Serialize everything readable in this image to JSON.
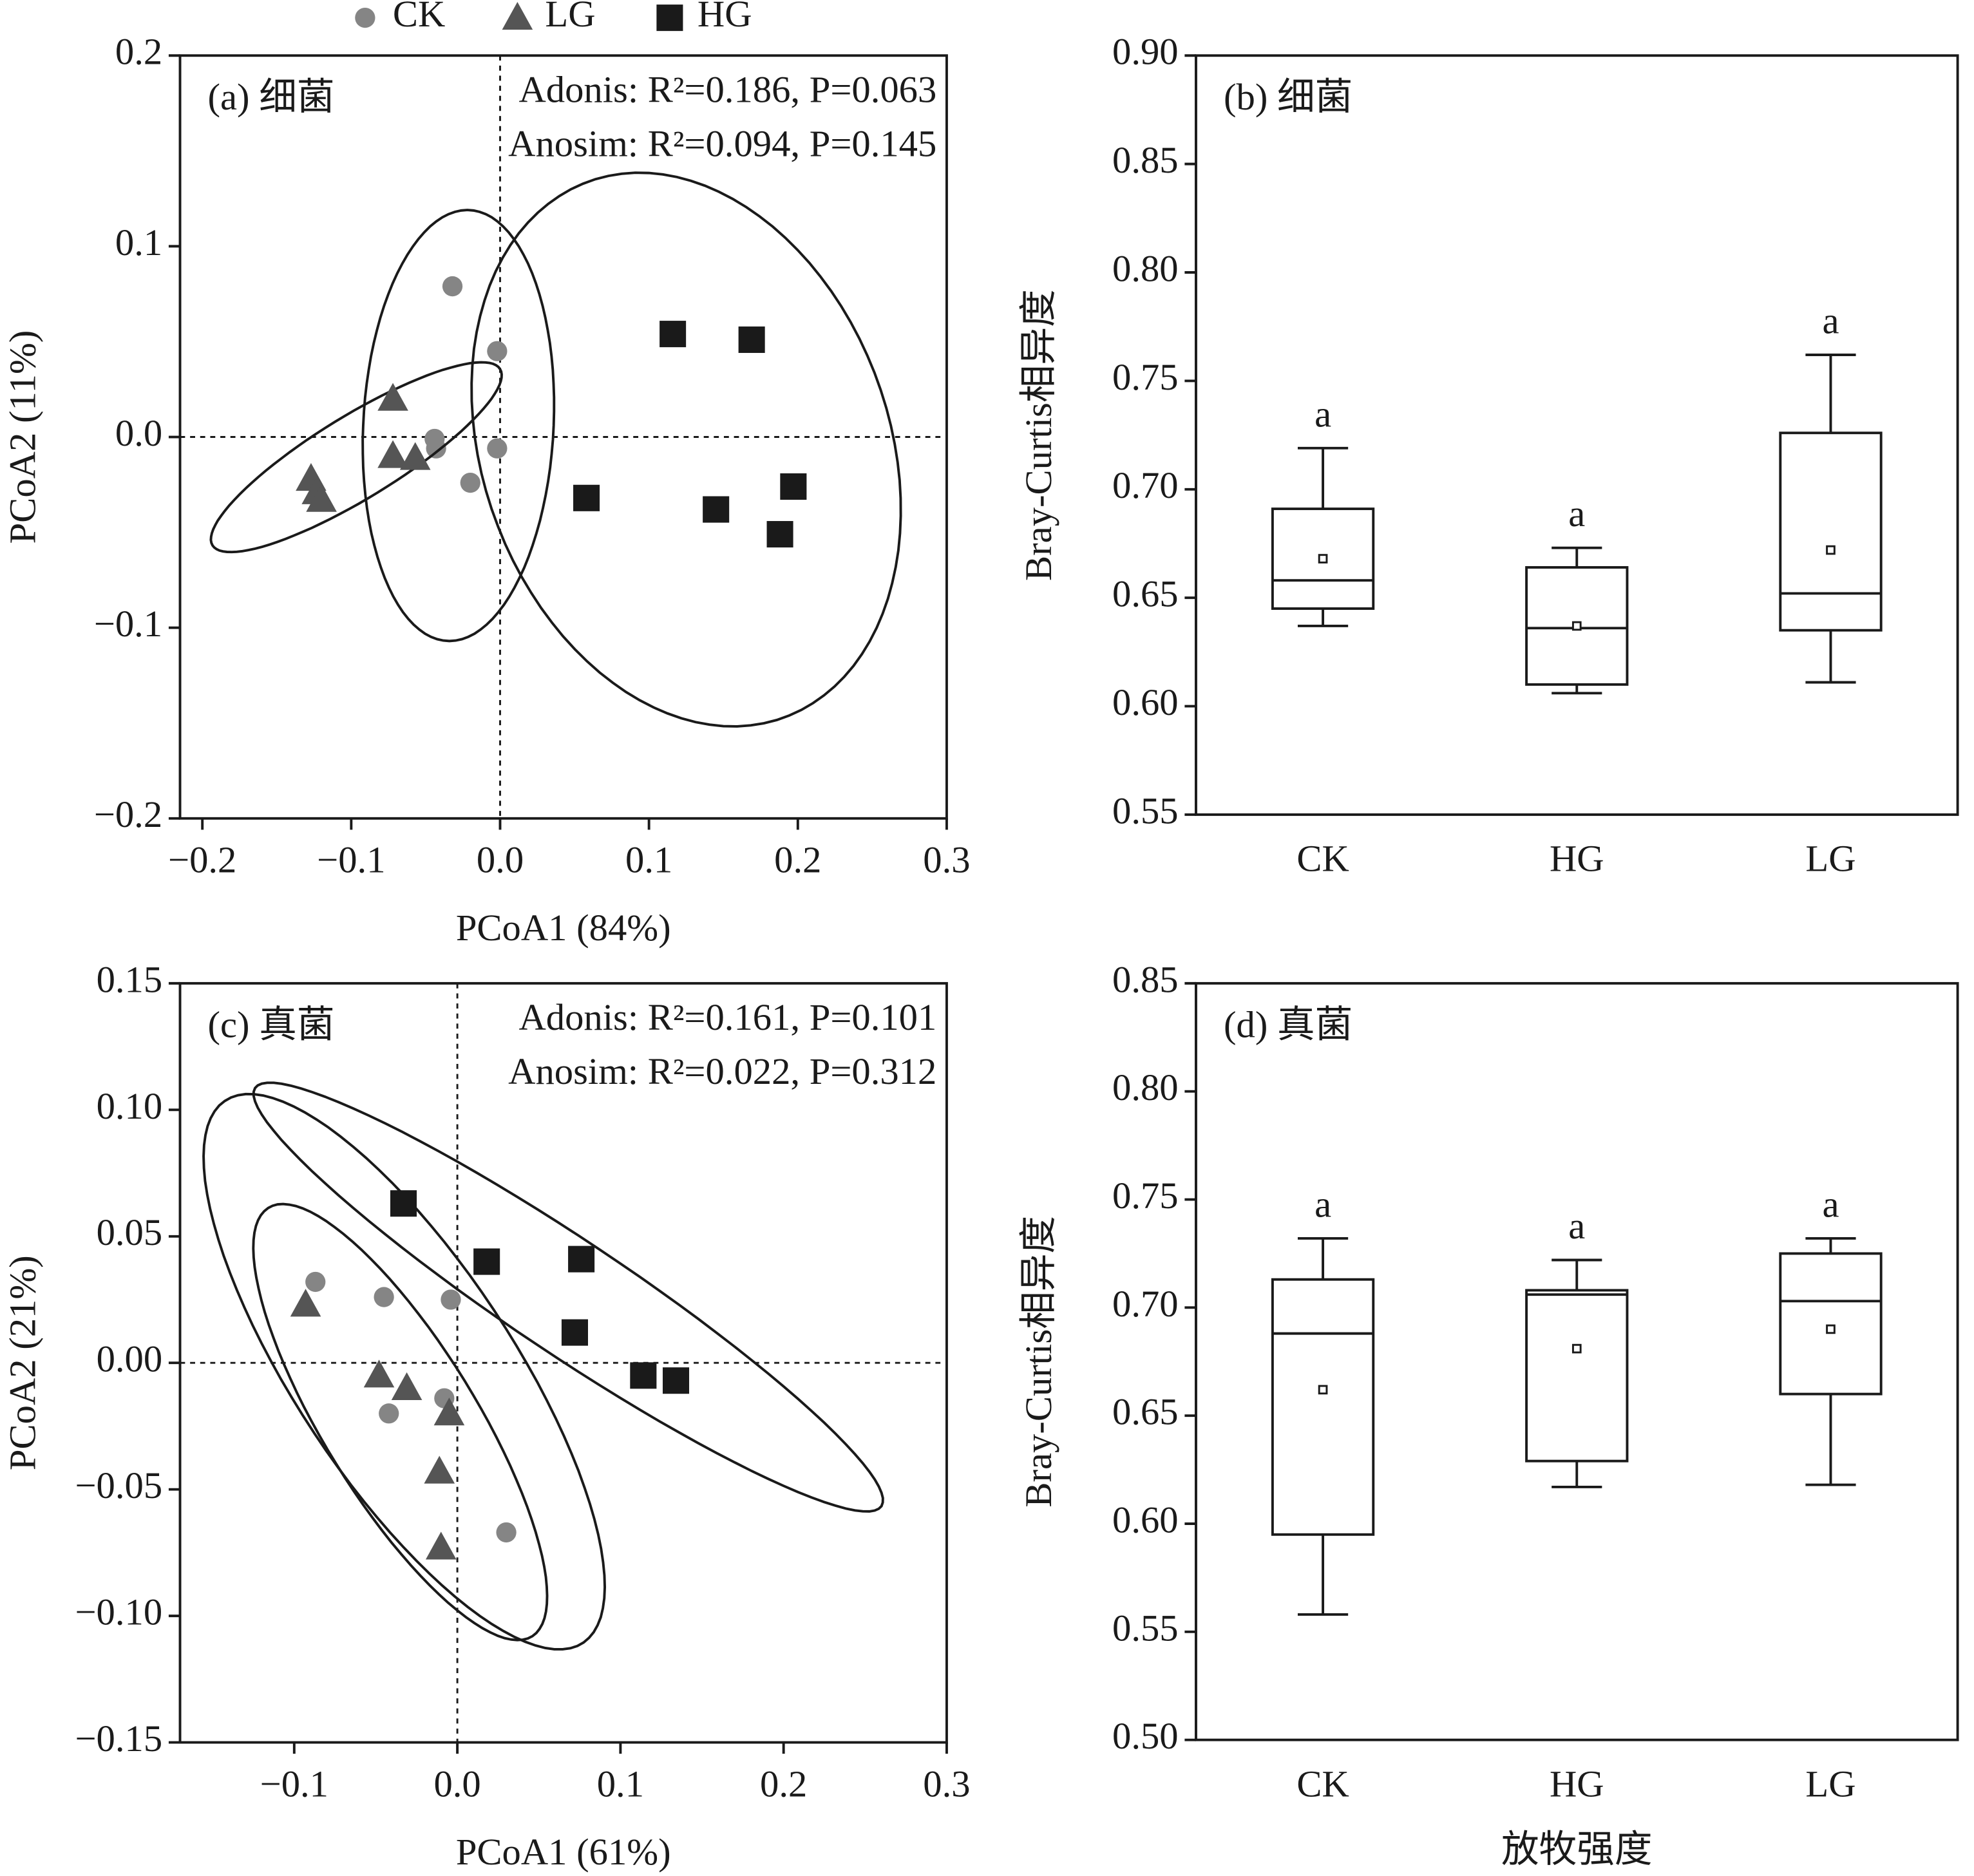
{
  "chart_data": [
    {
      "type": "scatter",
      "title": "(a) 细菌",
      "annotations": [
        "Adonis: R²=0.186, P=0.063",
        "Anosim: R²=0.094, P=0.145"
      ],
      "xlabel": "PCoA1 (84%)",
      "ylabel": "PCoA2 (11%)",
      "xlim": [
        -0.215,
        0.3
      ],
      "ylim": [
        -0.2,
        0.2
      ],
      "xticks": [
        {
          "value": -0.2,
          "label": "−0.2"
        },
        {
          "value": -0.1,
          "label": "−0.1"
        },
        {
          "value": 0,
          "label": "0.0"
        },
        0.1,
        0.2,
        0.3
      ],
      "yticks": [
        {
          "value": -0.2,
          "label": "−0.2"
        },
        {
          "value": -0.1,
          "label": "−0.1"
        },
        {
          "value": 0,
          "label": "0.0"
        },
        0.1,
        0.2
      ],
      "zero_lines": true,
      "legend": "top",
      "series": [
        {
          "name": "CK",
          "color": "#858585",
          "marker": "circle",
          "x": [
            -0.032,
            -0.002,
            -0.044,
            -0.043,
            -0.002,
            -0.02
          ],
          "values": [
            0.079,
            0.045,
            -0.001,
            -0.006,
            -0.006,
            -0.024
          ],
          "ellipse": {
            "center": [
              -0.028,
              0.006
            ],
            "axis1": [
              0.006,
              0.113
            ],
            "axis2": [
              0.064,
              0
            ]
          }
        },
        {
          "name": "LG",
          "color": "#555555",
          "marker": "triangle",
          "x": [
            -0.072,
            -0.072,
            -0.057,
            -0.127,
            -0.123,
            -0.12
          ],
          "values": [
            0.02,
            -0.01,
            -0.011,
            -0.022,
            -0.029,
            -0.033
          ],
          "ellipse": {
            "center": [
              -0.0966,
              -0.0106
            ],
            "axis1": [
              0.0966,
              0.0462
            ],
            "axis2": [
              0.0144,
              -0.0185
            ]
          }
        },
        {
          "name": "HG",
          "color": "#1a1a1a",
          "marker": "square",
          "x": [
            0.116,
            0.169,
            0.058,
            0.145,
            0.197,
            0.188
          ],
          "values": [
            0.054,
            0.051,
            -0.032,
            -0.038,
            -0.026,
            -0.051
          ],
          "ellipse": {
            "center": [
              0.125,
              -0.0066
            ],
            "axis1": [
              -0.025,
              0.145
            ],
            "axis2": [
              0.142,
              -0.0066
            ]
          }
        }
      ]
    },
    {
      "type": "box",
      "title": "(b) 细菌",
      "ylabel": "Bray-Curtis相异度",
      "categories": [
        "CK",
        "HG",
        "LG"
      ],
      "ylim": [
        0.55,
        0.9
      ],
      "yticks": [
        0.55,
        {
          "value": 0.6,
          "label": "0.60"
        },
        0.65,
        {
          "value": 0.7,
          "label": "0.70"
        },
        0.75,
        {
          "value": 0.8,
          "label": "0.80"
        },
        0.85,
        {
          "value": 0.9,
          "label": "0.90"
        }
      ],
      "boxes": [
        {
          "min": 0.637,
          "q1": 0.645,
          "median": 0.658,
          "q3": 0.691,
          "max": 0.719,
          "mean": 0.668
        },
        {
          "min": 0.606,
          "q1": 0.61,
          "median": 0.636,
          "q3": 0.664,
          "max": 0.673,
          "mean": 0.637
        },
        {
          "min": 0.611,
          "q1": 0.635,
          "median": 0.652,
          "q3": 0.726,
          "max": 0.762,
          "mean": 0.672
        }
      ],
      "letters": [
        "a",
        "a",
        "a"
      ]
    },
    {
      "type": "scatter",
      "title": "(c) 真菌",
      "annotations": [
        "Adonis: R²=0.161, P=0.101",
        "Anosim: R²=0.022, P=0.312"
      ],
      "xlabel": "PCoA1 (61%)",
      "ylabel": "PCoA2 (21%)",
      "xlim": [
        -0.17,
        0.3
      ],
      "ylim": [
        -0.15,
        0.15
      ],
      "xticks": [
        {
          "value": -0.1,
          "label": "−0.1"
        },
        {
          "value": 0,
          "label": "0.0"
        },
        0.1,
        0.2,
        0.3
      ],
      "yticks": [
        {
          "value": -0.15,
          "label": "−0.15"
        },
        {
          "value": -0.1,
          "label": "−0.10"
        },
        {
          "value": -0.05,
          "label": "−0.05"
        },
        {
          "value": 0,
          "label": "0.00"
        },
        0.05,
        {
          "value": 0.1,
          "label": "0.10"
        },
        0.15
      ],
      "zero_lines": true,
      "series": [
        {
          "name": "CK",
          "color": "#858585",
          "marker": "circle",
          "x": [
            -0.087,
            -0.045,
            -0.004,
            -0.042,
            -0.008,
            0.03
          ],
          "values": [
            0.032,
            0.026,
            0.025,
            -0.02,
            -0.014,
            -0.067
          ],
          "ellipse": {
            "center": [
              -0.0326,
              -0.0035
            ],
            "axis1": [
              -0.11,
              0.107
            ],
            "axis2": [
              0.055,
              0.0244
            ]
          }
        },
        {
          "name": "LG",
          "color": "#555555",
          "marker": "triangle",
          "x": [
            -0.093,
            -0.048,
            -0.031,
            -0.005,
            -0.011,
            -0.01
          ],
          "values": [
            0.023,
            -0.005,
            -0.01,
            -0.02,
            -0.043,
            -0.073
          ],
          "ellipse": {
            "center": [
              -0.035,
              -0.0234
            ],
            "axis1": [
              -0.081,
              0.0846
            ],
            "axis2": [
              0.0394,
              0.0164
            ]
          }
        },
        {
          "name": "HG",
          "color": "#1a1a1a",
          "marker": "square",
          "x": [
            -0.033,
            0.018,
            0.076,
            0.072,
            0.114,
            0.134
          ],
          "values": [
            0.063,
            0.04,
            0.041,
            0.012,
            -0.005,
            -0.007
          ],
          "ellipse": {
            "center": [
              0.068,
              0.026
            ],
            "axis1": [
              0.192,
              -0.0826
            ],
            "axis2": [
              -0.019,
              -0.0189
            ]
          }
        }
      ]
    },
    {
      "type": "box",
      "title": "(d) 真菌",
      "ylabel": "Bray-Curtis相异度",
      "xlabel": "放牧强度",
      "categories": [
        "CK",
        "HG",
        "LG"
      ],
      "ylim": [
        0.5,
        0.85
      ],
      "yticks": [
        {
          "value": 0.5,
          "label": "0.50"
        },
        0.55,
        {
          "value": 0.6,
          "label": "0.60"
        },
        0.65,
        {
          "value": 0.7,
          "label": "0.70"
        },
        0.75,
        {
          "value": 0.8,
          "label": "0.80"
        },
        0.85
      ],
      "boxes": [
        {
          "min": 0.558,
          "q1": 0.595,
          "median": 0.688,
          "q3": 0.713,
          "max": 0.732,
          "mean": 0.662
        },
        {
          "min": 0.617,
          "q1": 0.629,
          "median": 0.706,
          "q3": 0.708,
          "max": 0.722,
          "mean": 0.681
        },
        {
          "min": 0.618,
          "q1": 0.66,
          "median": 0.703,
          "q3": 0.725,
          "max": 0.732,
          "mean": 0.69
        }
      ],
      "letters": [
        "a",
        "a",
        "a"
      ]
    }
  ]
}
